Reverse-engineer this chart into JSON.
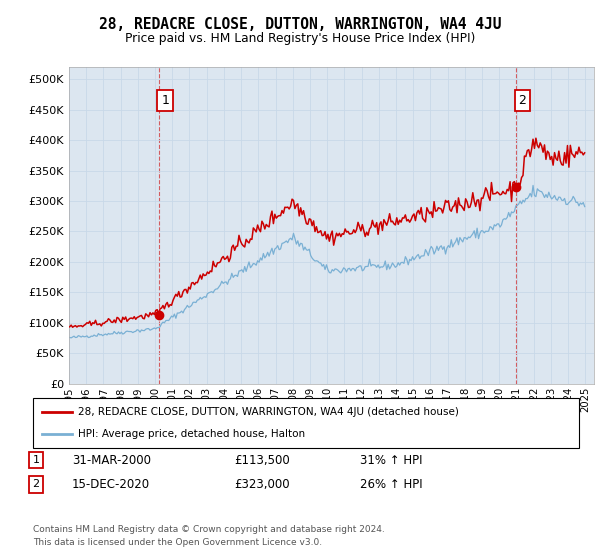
{
  "title": "28, REDACRE CLOSE, DUTTON, WARRINGTON, WA4 4JU",
  "subtitle": "Price paid vs. HM Land Registry's House Price Index (HPI)",
  "plot_bg_color": "#dce6f0",
  "ylim": [
    0,
    520000
  ],
  "yticks": [
    0,
    50000,
    100000,
    150000,
    200000,
    250000,
    300000,
    350000,
    400000,
    450000,
    500000
  ],
  "xlim_start": 1995,
  "xlim_end": 2025.5,
  "legend_line1": "28, REDACRE CLOSE, DUTTON, WARRINGTON, WA4 4JU (detached house)",
  "legend_line2": "HPI: Average price, detached house, Halton",
  "table_row1": [
    "1",
    "31-MAR-2000",
    "£113,500",
    "31% ↑ HPI"
  ],
  "table_row2": [
    "2",
    "15-DEC-2020",
    "£323,000",
    "26% ↑ HPI"
  ],
  "footer": "Contains HM Land Registry data © Crown copyright and database right 2024.\nThis data is licensed under the Open Government Licence v3.0.",
  "red_color": "#cc0000",
  "blue_color": "#7ab0d4",
  "grid_color": "#c8d8e8",
  "point1_year": 2000.21,
  "point1_val": 113500,
  "point2_year": 2020.96,
  "point2_val": 323000
}
